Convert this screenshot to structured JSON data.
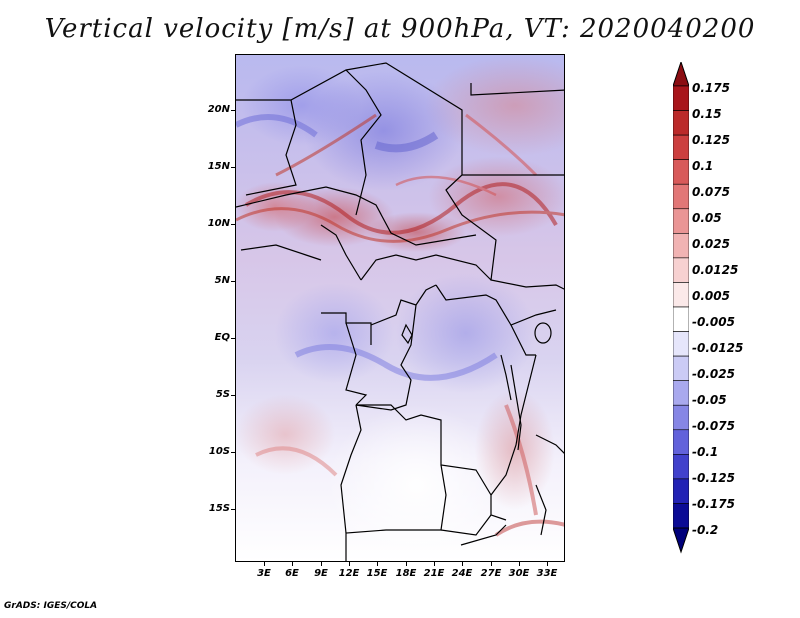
{
  "title": "Vertical velocity [m/s] at 900hPa, VT: 2020040200",
  "map": {
    "y_axis_labels": [
      "20N",
      "15N",
      "10N",
      "5N",
      "EQ",
      "5S",
      "10S",
      "15S"
    ],
    "x_axis_labels": [
      "3E",
      "6E",
      "9E",
      "12E",
      "15E",
      "18E",
      "21E",
      "24E",
      "27E",
      "30E",
      "33E"
    ]
  },
  "colorbar": {
    "levels": [
      "0.175",
      "0.15",
      "0.125",
      "0.1",
      "0.075",
      "0.05",
      "0.025",
      "0.0125",
      "0.005",
      "-0.005",
      "-0.0125",
      "-0.025",
      "-0.05",
      "-0.075",
      "-0.1",
      "-0.125",
      "-0.175",
      "-0.2"
    ],
    "colors": [
      "#a8151b",
      "#bb2a2a",
      "#cc3f3f",
      "#d85a5a",
      "#e27777",
      "#ea9595",
      "#f1b3b3",
      "#f7d1d1",
      "#fbe9e9",
      "#ffffff",
      "#e6e6fb",
      "#cbcbf5",
      "#a9a9ee",
      "#8686e5",
      "#6262db",
      "#4141cc",
      "#2222b5",
      "#0b0b95"
    ],
    "top_arrow_color": "#8b0d12",
    "bottom_arrow_color": "#00007a"
  },
  "footer": "GrADS: IGES/COLA"
}
